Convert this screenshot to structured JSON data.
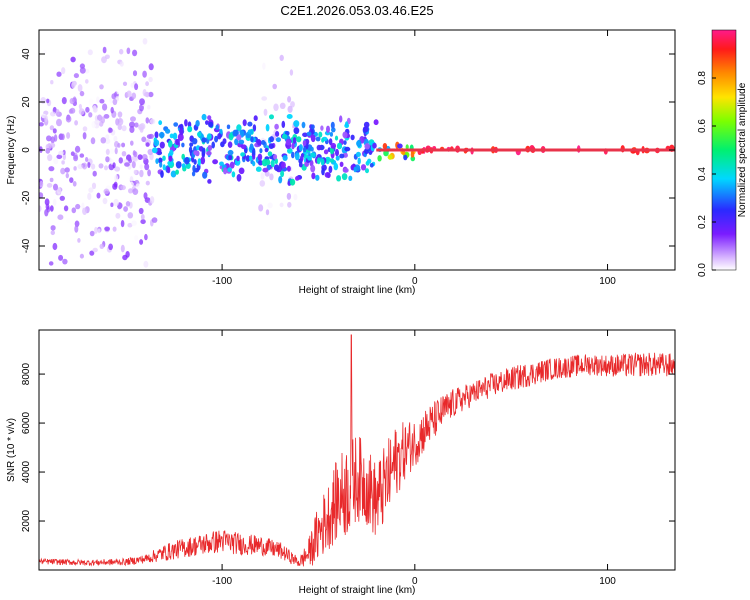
{
  "figure_title": "C2E1.2026.053.03.46.E25",
  "colors": {
    "snr_line": "#e8292b",
    "axis": "#000000",
    "carrier": "#e8334a"
  },
  "chart_data": [
    {
      "type": "heatmap",
      "title": "C2E1.2026.053.03.46.E25",
      "xlabel": "Height of straight line (km)",
      "ylabel": "Frequency (Hz)",
      "xlim": [
        -195,
        135
      ],
      "ylim": [
        -50,
        50
      ],
      "xticks": [
        -100,
        0,
        100
      ],
      "yticks": [
        -40,
        -20,
        0,
        20,
        40
      ],
      "xtick_labels": [
        "-100",
        "0",
        "100"
      ],
      "ytick_labels": [
        "-40",
        "-20",
        "0",
        "20",
        "40"
      ],
      "colorbar": {
        "label": "Normalized spectral amplitude",
        "range": [
          0,
          1
        ],
        "ticks": [
          0,
          0.2,
          0.4,
          0.6,
          0.8
        ],
        "tick_labels": [
          "0.0",
          "0.2",
          "0.4",
          "0.6",
          "0.8"
        ],
        "colormap": "rainbow (white-violet-blue-cyan-green-yellow-orange-red-magenta)"
      },
      "regions": [
        {
          "x": [
            -195,
            -135
          ],
          "freq": [
            -50,
            50
          ],
          "amplitude": [
            0.0,
            0.15
          ],
          "note": "broad scatter"
        },
        {
          "x": [
            -80,
            -60
          ],
          "freq": [
            -50,
            50
          ],
          "amplitude": [
            0.0,
            0.08
          ]
        },
        {
          "x": [
            -135,
            -20
          ],
          "freq": [
            -15,
            15
          ],
          "amplitude": [
            0.1,
            0.45
          ]
        },
        {
          "x": [
            -20,
            0
          ],
          "freq": [
            -4,
            4
          ],
          "amplitude": [
            0.2,
            0.9
          ]
        },
        {
          "x": [
            0,
            135
          ],
          "freq": [
            -1,
            1
          ],
          "amplitude": [
            0.9,
            1.0
          ],
          "note": "narrow carrier line at 0 Hz"
        }
      ]
    },
    {
      "type": "line",
      "xlabel": "Height of straight line (km)",
      "ylabel": "SNR (10 * v/v)",
      "xlim": [
        -195,
        135
      ],
      "ylim": [
        0,
        9800
      ],
      "xticks": [
        -100,
        0,
        100
      ],
      "yticks": [
        2000,
        4000,
        6000,
        8000
      ],
      "xtick_labels": [
        "-100",
        "0",
        "100"
      ],
      "ytick_labels": [
        "2000",
        "4000",
        "6000",
        "8000"
      ],
      "series": [
        {
          "color": "#e8292b",
          "x": [
            -195,
            -170,
            -150,
            -140,
            -130,
            -120,
            -110,
            -100,
            -90,
            -80,
            -70,
            -60,
            -55,
            -50,
            -45,
            -40,
            -35,
            -30,
            -25,
            -20,
            -15,
            -10,
            -5,
            0,
            5,
            10,
            15,
            20,
            30,
            40,
            50,
            60,
            70,
            80,
            90,
            100,
            110,
            120,
            135
          ],
          "y": [
            350,
            300,
            330,
            450,
            700,
            900,
            1050,
            1200,
            1050,
            1000,
            800,
            300,
            700,
            1500,
            2200,
            2900,
            3300,
            3800,
            3500,
            2800,
            3500,
            4400,
            4900,
            5200,
            5700,
            6100,
            6500,
            6800,
            7200,
            7550,
            7800,
            8000,
            8200,
            8300,
            8400,
            8350,
            8350,
            8400,
            8350
          ],
          "noise": [
            120,
            120,
            140,
            180,
            350,
            400,
            450,
            500,
            450,
            400,
            350,
            200,
            600,
            1200,
            1400,
            1700,
            2000,
            1800,
            1700,
            1600,
            1700,
            1500,
            1200,
            1000,
            900,
            800,
            700,
            600,
            500,
            500,
            500,
            500,
            450,
            450,
            450,
            450,
            500,
            500,
            500
          ],
          "peak": {
            "x": -33,
            "y": 9600
          }
        }
      ]
    }
  ]
}
